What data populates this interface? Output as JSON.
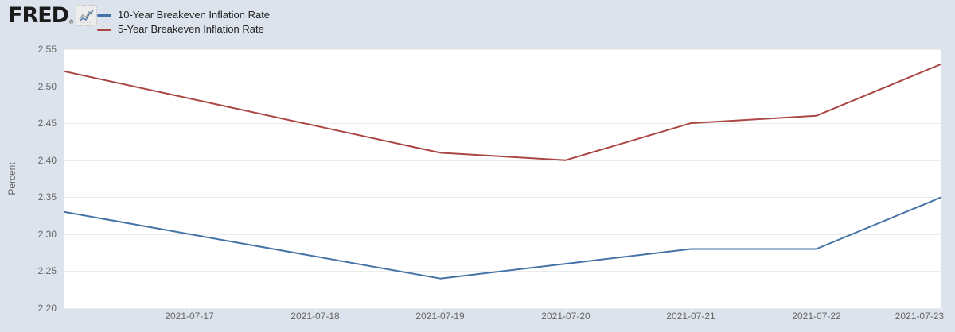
{
  "header": {
    "logo_text": "FRED",
    "logo_registered": "®"
  },
  "legend": {
    "items": [
      {
        "label": "10-Year Breakeven Inflation Rate",
        "color": "#4572a7"
      },
      {
        "label": "5-Year Breakeven Inflation Rate",
        "color": "#aa4643"
      }
    ]
  },
  "chart_data": {
    "type": "line",
    "title": "",
    "xlabel": "",
    "ylabel": "Percent",
    "ylim": [
      2.2,
      2.55
    ],
    "y_tick_step": 0.05,
    "y_ticks": [
      "2.55",
      "2.50",
      "2.45",
      "2.40",
      "2.35",
      "2.30",
      "2.25",
      "2.20"
    ],
    "x_domain": [
      "2021-07-16",
      "2021-07-23"
    ],
    "x_tick_labels": [
      "2021-07-17",
      "2021-07-18",
      "2021-07-19",
      "2021-07-20",
      "2021-07-21",
      "2021-07-22",
      "2021-07-23"
    ],
    "grid": true,
    "legend_position": "top-left",
    "x": [
      "2021-07-16",
      "2021-07-19",
      "2021-07-20",
      "2021-07-21",
      "2021-07-22",
      "2021-07-23"
    ],
    "series": [
      {
        "name": "10-Year Breakeven Inflation Rate",
        "color": "#4572a7",
        "values": [
          2.33,
          2.24,
          2.26,
          2.28,
          2.28,
          2.35
        ]
      },
      {
        "name": "5-Year Breakeven Inflation Rate",
        "color": "#aa4643",
        "values": [
          2.52,
          2.41,
          2.4,
          2.45,
          2.46,
          2.53
        ]
      }
    ],
    "colors": {
      "background": "#dde3ec",
      "plot_background": "#ffffff",
      "gridline": "#ececec",
      "axis_label_text": "#666666",
      "legend_text": "#222222"
    }
  }
}
